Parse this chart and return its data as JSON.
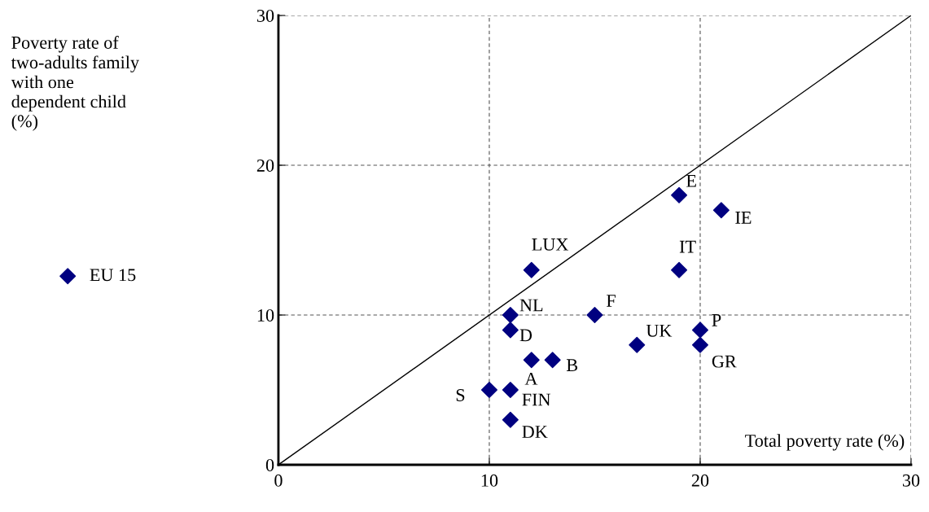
{
  "chart_data": {
    "type": "scatter",
    "xlabel": "Total poverty rate (%)",
    "x": [
      19,
      21,
      12,
      19,
      11,
      15,
      11,
      20,
      17,
      20,
      12,
      13,
      10,
      11,
      11
    ],
    "series": [
      {
        "name": "EU 15",
        "color": "#000080",
        "marker": "diamond",
        "values": [
          18,
          17,
          13,
          13,
          10,
          10,
          9,
          9,
          8,
          8,
          7,
          7,
          5,
          5,
          3
        ]
      },
      {
        "type": "line",
        "color": "#000000",
        "x": [
          0,
          30
        ],
        "values": [
          0,
          30
        ],
        "marker": "none"
      }
    ],
    "annotations": [
      {
        "text": "E",
        "x": 19,
        "y": 18
      },
      {
        "text": "IE",
        "x": 21,
        "y": 17
      },
      {
        "text": "LUX",
        "x": 12,
        "y": 13
      },
      {
        "text": "IT",
        "x": 19,
        "y": 13
      },
      {
        "text": "NL",
        "x": 11,
        "y": 10
      },
      {
        "text": "F",
        "x": 15,
        "y": 10
      },
      {
        "text": "D",
        "x": 11,
        "y": 9
      },
      {
        "text": "P",
        "x": 20,
        "y": 9
      },
      {
        "text": "UK",
        "x": 17,
        "y": 8
      },
      {
        "text": "GR",
        "x": 20,
        "y": 8
      },
      {
        "text": "A",
        "x": 12,
        "y": 7
      },
      {
        "text": "B",
        "x": 13,
        "y": 7
      },
      {
        "text": "S",
        "x": 10,
        "y": 5
      },
      {
        "text": "FIN",
        "x": 11,
        "y": 5
      },
      {
        "text": "DK",
        "x": 11,
        "y": 3
      },
      "Poverty rate of\ntwo-adults family\nwith one\ndependent child\n(%)"
    ],
    "xlim": [
      0,
      30
    ],
    "ylim": [
      0,
      30
    ],
    "xticks": [
      0,
      10,
      20,
      30
    ],
    "yticks": [
      0,
      10,
      20,
      30
    ],
    "grid": true,
    "legend": "left"
  }
}
